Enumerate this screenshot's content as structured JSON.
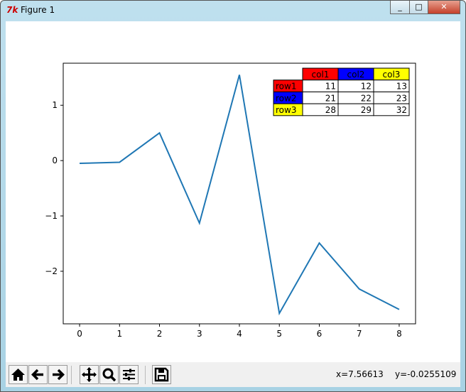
{
  "window": {
    "title": "Figure 1",
    "icon": "tk-feather-icon"
  },
  "toolbar": {
    "buttons": [
      "home-icon",
      "back-arrow-icon",
      "forward-arrow-icon",
      "pan-icon",
      "zoom-icon",
      "configure-subplots-icon",
      "save-icon"
    ],
    "x_readout": "x=7.56613",
    "y_readout": "y=-0.0255109"
  },
  "chart_data": {
    "type": "line",
    "x": [
      0,
      1,
      2,
      3,
      4,
      5,
      6,
      7,
      8
    ],
    "y": [
      -0.05,
      -0.03,
      0.5,
      -1.13,
      1.55,
      -2.76,
      -1.49,
      -2.32,
      -2.69
    ],
    "xlim": [
      -0.41,
      8.41
    ],
    "ylim": [
      -2.95,
      1.76
    ],
    "xticks": [
      "0",
      "1",
      "2",
      "3",
      "4",
      "5",
      "6",
      "7",
      "8"
    ],
    "yticks": [
      "1",
      "0",
      "−1",
      "−2"
    ],
    "line_color": "#1f77b4",
    "grid": false,
    "table": {
      "col_labels": [
        "col1",
        "col2",
        "col3"
      ],
      "col_colors": [
        "#ff0000",
        "#0000ff",
        "#ffff00"
      ],
      "row_labels": [
        "row1",
        "row2",
        "row3"
      ],
      "row_colors": [
        "#ff0000",
        "#0000ff",
        "#ffff00"
      ],
      "cells": [
        [
          "11",
          "12",
          "13"
        ],
        [
          "21",
          "22",
          "23"
        ],
        [
          "28",
          "29",
          "32"
        ]
      ],
      "placement": "top-right"
    }
  }
}
